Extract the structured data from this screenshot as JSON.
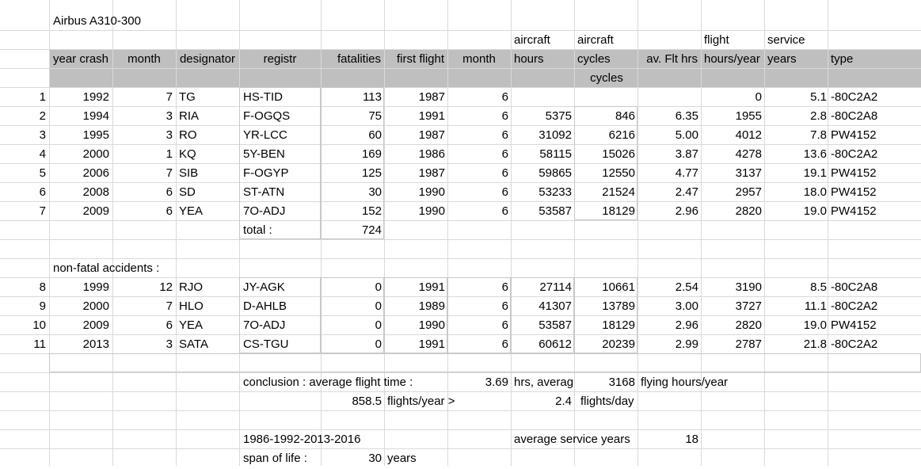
{
  "title": "Airbus A310-300",
  "header": {
    "row1": {
      "aircraft_hours": "aircraft",
      "aircraft_cycles": "aircraft",
      "flight_hours": "flight",
      "service_years": "service"
    },
    "row2": [
      "year crash",
      "month",
      "designator",
      "registr",
      "fatalities",
      "first flight",
      "month",
      "hours",
      "cycles",
      "av. Flt hrs",
      "hours/year",
      "years",
      "type"
    ],
    "row3_cycles": "cycles"
  },
  "fatal": [
    {
      "n": "1",
      "year": "1992",
      "month": "7",
      "des": "TG",
      "reg": "HS-TID",
      "fat": "113",
      "ff": "1987",
      "ffm": "6",
      "hours": "",
      "cycles": "",
      "avg": "",
      "fhy": "0",
      "sy": "5.1",
      "type": "-80C2A2"
    },
    {
      "n": "2",
      "year": "1994",
      "month": "3",
      "des": "RIA",
      "reg": "F-OGQS",
      "fat": "75",
      "ff": "1991",
      "ffm": "6",
      "hours": "5375",
      "cycles": "846",
      "avg": "6.35",
      "fhy": "1955",
      "sy": "2.8",
      "type": "-80C2A8"
    },
    {
      "n": "3",
      "year": "1995",
      "month": "3",
      "des": "RO",
      "reg": "YR-LCC",
      "fat": "60",
      "ff": "1987",
      "ffm": "6",
      "hours": "31092",
      "cycles": "6216",
      "avg": "5.00",
      "fhy": "4012",
      "sy": "7.8",
      "type": "PW4152"
    },
    {
      "n": "4",
      "year": "2000",
      "month": "1",
      "des": "KQ",
      "reg": "5Y-BEN",
      "fat": "169",
      "ff": "1986",
      "ffm": "6",
      "hours": "58115",
      "cycles": "15026",
      "avg": "3.87",
      "fhy": "4278",
      "sy": "13.6",
      "type": "-80C2A2"
    },
    {
      "n": "5",
      "year": "2006",
      "month": "7",
      "des": "SIB",
      "reg": "F-OGYP",
      "fat": "125",
      "ff": "1987",
      "ffm": "6",
      "hours": "59865",
      "cycles": "12550",
      "avg": "4.77",
      "fhy": "3137",
      "sy": "19.1",
      "type": "PW4152"
    },
    {
      "n": "6",
      "year": "2008",
      "month": "6",
      "des": "SD",
      "reg": "ST-ATN",
      "fat": "30",
      "ff": "1990",
      "ffm": "6",
      "hours": "53233",
      "cycles": "21524",
      "avg": "2.47",
      "fhy": "2957",
      "sy": "18.0",
      "type": "PW4152"
    },
    {
      "n": "7",
      "year": "2009",
      "month": "6",
      "des": "YEA",
      "reg": "7O-ADJ",
      "fat": "152",
      "ff": "1990",
      "ffm": "6",
      "hours": "53587",
      "cycles": "18129",
      "avg": "2.96",
      "fhy": "2820",
      "sy": "19.0",
      "type": "PW4152"
    }
  ],
  "total": {
    "label": "total :",
    "value": "724"
  },
  "nonfatal_label": "non-fatal accidents :",
  "nonfatal": [
    {
      "n": "8",
      "year": "1999",
      "month": "12",
      "des": "RJO",
      "reg": "JY-AGK",
      "fat": "0",
      "ff": "1991",
      "ffm": "6",
      "hours": "27114",
      "cycles": "10661",
      "avg": "2.54",
      "fhy": "3190",
      "sy": "8.5",
      "type": "-80C2A8"
    },
    {
      "n": "9",
      "year": "2000",
      "month": "7",
      "des": "HLO",
      "reg": "D-AHLB",
      "fat": "0",
      "ff": "1989",
      "ffm": "6",
      "hours": "41307",
      "cycles": "13789",
      "avg": "3.00",
      "fhy": "3727",
      "sy": "11.1",
      "type": "-80C2A2"
    },
    {
      "n": "10",
      "year": "2009",
      "month": "6",
      "des": "YEA",
      "reg": "7O-ADJ",
      "fat": "0",
      "ff": "1990",
      "ffm": "6",
      "hours": "53587",
      "cycles": "18129",
      "avg": "2.96",
      "fhy": "2820",
      "sy": "19.0",
      "type": "PW4152"
    },
    {
      "n": "11",
      "year": "2013",
      "month": "3",
      "des": "SATA",
      "reg": "CS-TGU",
      "fat": "0",
      "ff": "1991",
      "ffm": "6",
      "hours": "60612",
      "cycles": "20239",
      "avg": "2.99",
      "fhy": "2787",
      "sy": "21.8",
      "type": "-80C2A2"
    }
  ],
  "conclusion": {
    "label": "conclusion : average flight time :",
    "avg_time": "3.69",
    "hrs_label": "hrs, averag",
    "flying_hours": "3168",
    "flying_hours_label": "flying hours/year",
    "flights_year": "858.5",
    "flights_year_label": "flights/year >",
    "flights_day": "2.4",
    "flights_day_label": "flights/day"
  },
  "years_span": "1986-1992-2013-2016",
  "avg_service_label": "average service years",
  "avg_service_value": "18",
  "span_label": "span of life :",
  "span_value": "30",
  "span_unit": "years"
}
